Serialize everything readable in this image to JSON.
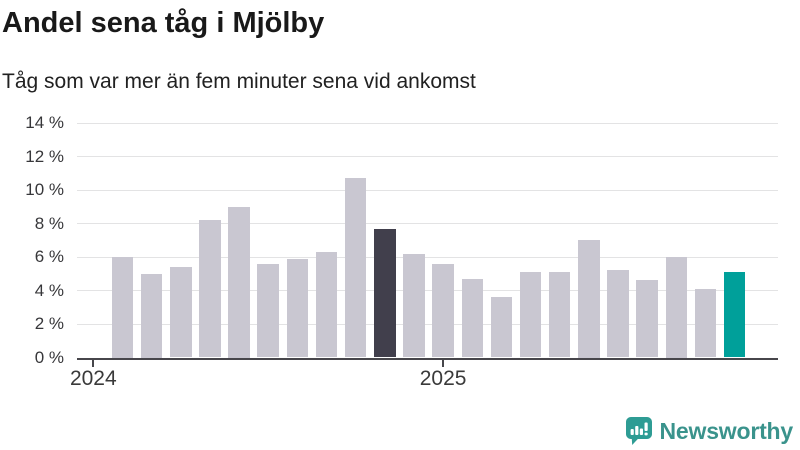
{
  "header": {
    "title": "Andel sena tåg i Mjölby",
    "subtitle": "Tåg som var mer än fem minuter sena vid ankomst"
  },
  "chart_data": {
    "type": "bar",
    "unit": "%",
    "values": [
      6.0,
      5.0,
      5.4,
      8.2,
      9.0,
      5.6,
      5.9,
      6.3,
      10.7,
      7.7,
      6.2,
      5.6,
      4.7,
      3.6,
      5.1,
      5.1,
      7.0,
      5.2,
      4.6,
      6.0,
      4.1,
      5.1
    ],
    "ylim": [
      0,
      14
    ],
    "ytick_step": 2,
    "yticks": [
      "0 %",
      "2 %",
      "4 %",
      "6 %",
      "8 %",
      "10 %",
      "12 %",
      "14 %"
    ],
    "xticks": [
      {
        "label": "2024",
        "slot": -1
      },
      {
        "label": "2025",
        "slot": 11
      }
    ],
    "grid": "horizontal",
    "legend": "none",
    "colors": {
      "bar_default": "#c9c7d1",
      "bar_dark": "#413f4c",
      "bar_accent": "#00a09a",
      "gridline": "#e3e3e4",
      "axis": "#47464b"
    },
    "dark_bar_index": 9,
    "accent_bar_index": 21
  },
  "footer": {
    "logo_text": "Newsworthy",
    "logo_color": "#3a938c",
    "logo_icon_color": "#2e9c94"
  }
}
